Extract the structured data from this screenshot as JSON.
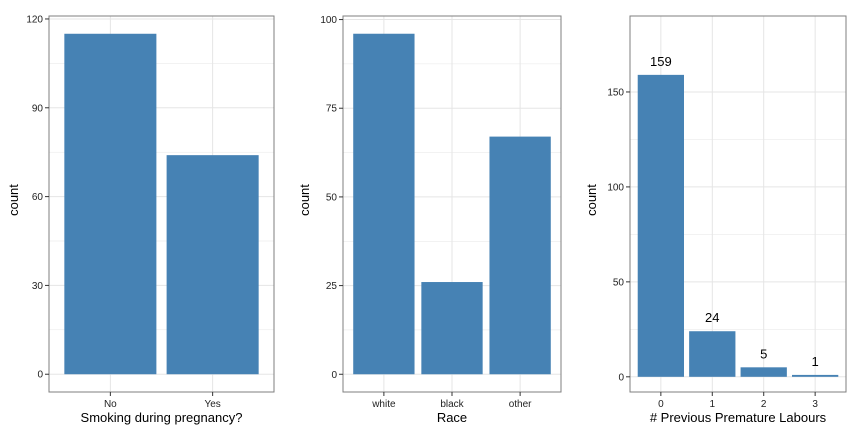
{
  "colors": {
    "bar": "#4682B4",
    "grid": "#E5E5E5",
    "panel_border": "#7F7F7F",
    "tick": "#333333"
  },
  "chart_data": [
    {
      "type": "bar",
      "categories": [
        "No",
        "Yes"
      ],
      "values": [
        115,
        74
      ],
      "xlabel": "Smoking during pregnancy?",
      "ylabel": "count",
      "ylim": [
        -6,
        121
      ],
      "yticks": [
        0,
        30,
        60,
        90,
        120
      ],
      "grid": true,
      "data_labels": []
    },
    {
      "type": "bar",
      "categories": [
        "white",
        "black",
        "other"
      ],
      "values": [
        96,
        26,
        67
      ],
      "xlabel": "Race",
      "ylabel": "count",
      "ylim": [
        -5,
        101
      ],
      "yticks": [
        0,
        25,
        50,
        75,
        100
      ],
      "grid": true,
      "data_labels": []
    },
    {
      "type": "bar",
      "categories": [
        "0",
        "1",
        "2",
        "3"
      ],
      "values": [
        159,
        24,
        5,
        1
      ],
      "xlabel": "# Previous Premature Labours",
      "ylabel": "count",
      "ylim": [
        -8,
        190
      ],
      "yticks": [
        0,
        50,
        100,
        150
      ],
      "grid": true,
      "data_labels": [
        "159",
        "24",
        "5",
        "1"
      ]
    }
  ]
}
